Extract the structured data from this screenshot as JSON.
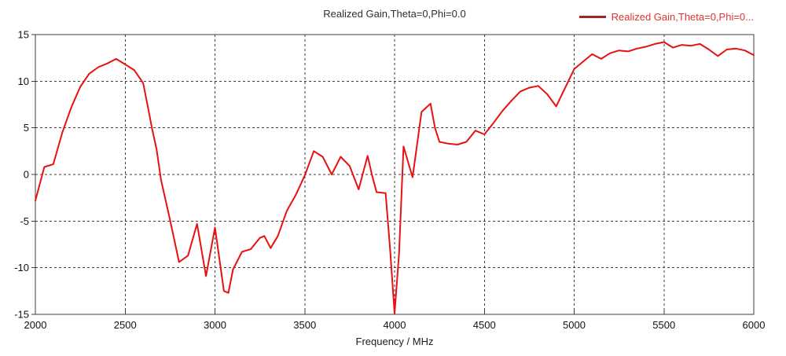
{
  "title": "Realized Gain,Theta=0,Phi=0.0",
  "legend": {
    "label": "Realized Gain,Theta=0,Phi=0...",
    "swatch_color": "#a32424",
    "text_color": "#e03333"
  },
  "colors": {
    "curve": "#e81111",
    "axis": "#3c3c3c",
    "background": "#ffffff"
  },
  "chart_data": {
    "type": "line",
    "title": "Realized Gain,Theta=0,Phi=0.0",
    "xlabel": "Frequency / MHz",
    "ylabel": "",
    "xlim": [
      2000,
      6000
    ],
    "ylim": [
      -15,
      15
    ],
    "grid": "dashed",
    "legend_position": "top-right",
    "xticks": [
      2000,
      2500,
      3000,
      3500,
      4000,
      4500,
      5000,
      5500,
      6000
    ],
    "xtick_labels": [
      "2000",
      "2500",
      "3000",
      "3500",
      "4000",
      "4500",
      "5000",
      "5500",
      "6000"
    ],
    "yticks": [
      15,
      10,
      5,
      0,
      -5,
      -10,
      -15
    ],
    "ytick_labels": [
      "15",
      "10",
      "5",
      "0",
      "-5",
      "-10",
      "-15"
    ],
    "series": [
      {
        "name": "Realized Gain,Theta=0,Phi=0.0",
        "color": "#e81111",
        "x": [
          2000,
          2050,
          2100,
          2150,
          2200,
          2250,
          2300,
          2350,
          2400,
          2450,
          2500,
          2550,
          2600,
          2625,
          2650,
          2675,
          2700,
          2750,
          2800,
          2850,
          2900,
          2950,
          3000,
          3050,
          3075,
          3100,
          3150,
          3200,
          3250,
          3275,
          3310,
          3350,
          3400,
          3450,
          3500,
          3550,
          3600,
          3650,
          3700,
          3750,
          3800,
          3850,
          3875,
          3900,
          3950,
          3975,
          4000,
          4025,
          4050,
          4100,
          4150,
          4200,
          4225,
          4250,
          4300,
          4350,
          4400,
          4450,
          4500,
          4550,
          4600,
          4650,
          4700,
          4750,
          4800,
          4850,
          4900,
          4950,
          5000,
          5050,
          5100,
          5150,
          5200,
          5250,
          5300,
          5350,
          5400,
          5450,
          5500,
          5550,
          5600,
          5650,
          5700,
          5750,
          5800,
          5850,
          5900,
          5950,
          6000
        ],
        "y": [
          -2.8,
          0.8,
          1.1,
          4.5,
          7.2,
          9.4,
          10.8,
          11.5,
          11.9,
          12.4,
          11.8,
          11.2,
          9.8,
          7.4,
          4.9,
          2.7,
          -0.6,
          -4.9,
          -9.4,
          -8.7,
          -5.3,
          -10.9,
          -5.7,
          -12.5,
          -12.7,
          -10.2,
          -8.3,
          -8.0,
          -6.8,
          -6.6,
          -7.9,
          -6.6,
          -3.9,
          -2.2,
          -0.1,
          2.5,
          1.9,
          0.0,
          1.9,
          0.9,
          -1.6,
          2.0,
          -0.1,
          -1.9,
          -2.0,
          -8.0,
          -14.9,
          -8.5,
          3.0,
          -0.3,
          6.7,
          7.6,
          5.0,
          3.5,
          3.3,
          3.2,
          3.5,
          4.7,
          4.3,
          5.5,
          6.8,
          7.9,
          8.9,
          9.3,
          9.5,
          8.6,
          7.3,
          9.3,
          11.3,
          12.1,
          12.9,
          12.4,
          13.0,
          13.3,
          13.2,
          13.5,
          13.7,
          14.0,
          14.2,
          13.6,
          13.9,
          13.8,
          14.0,
          13.4,
          12.7,
          13.4,
          13.5,
          13.3,
          12.8
        ]
      }
    ]
  }
}
